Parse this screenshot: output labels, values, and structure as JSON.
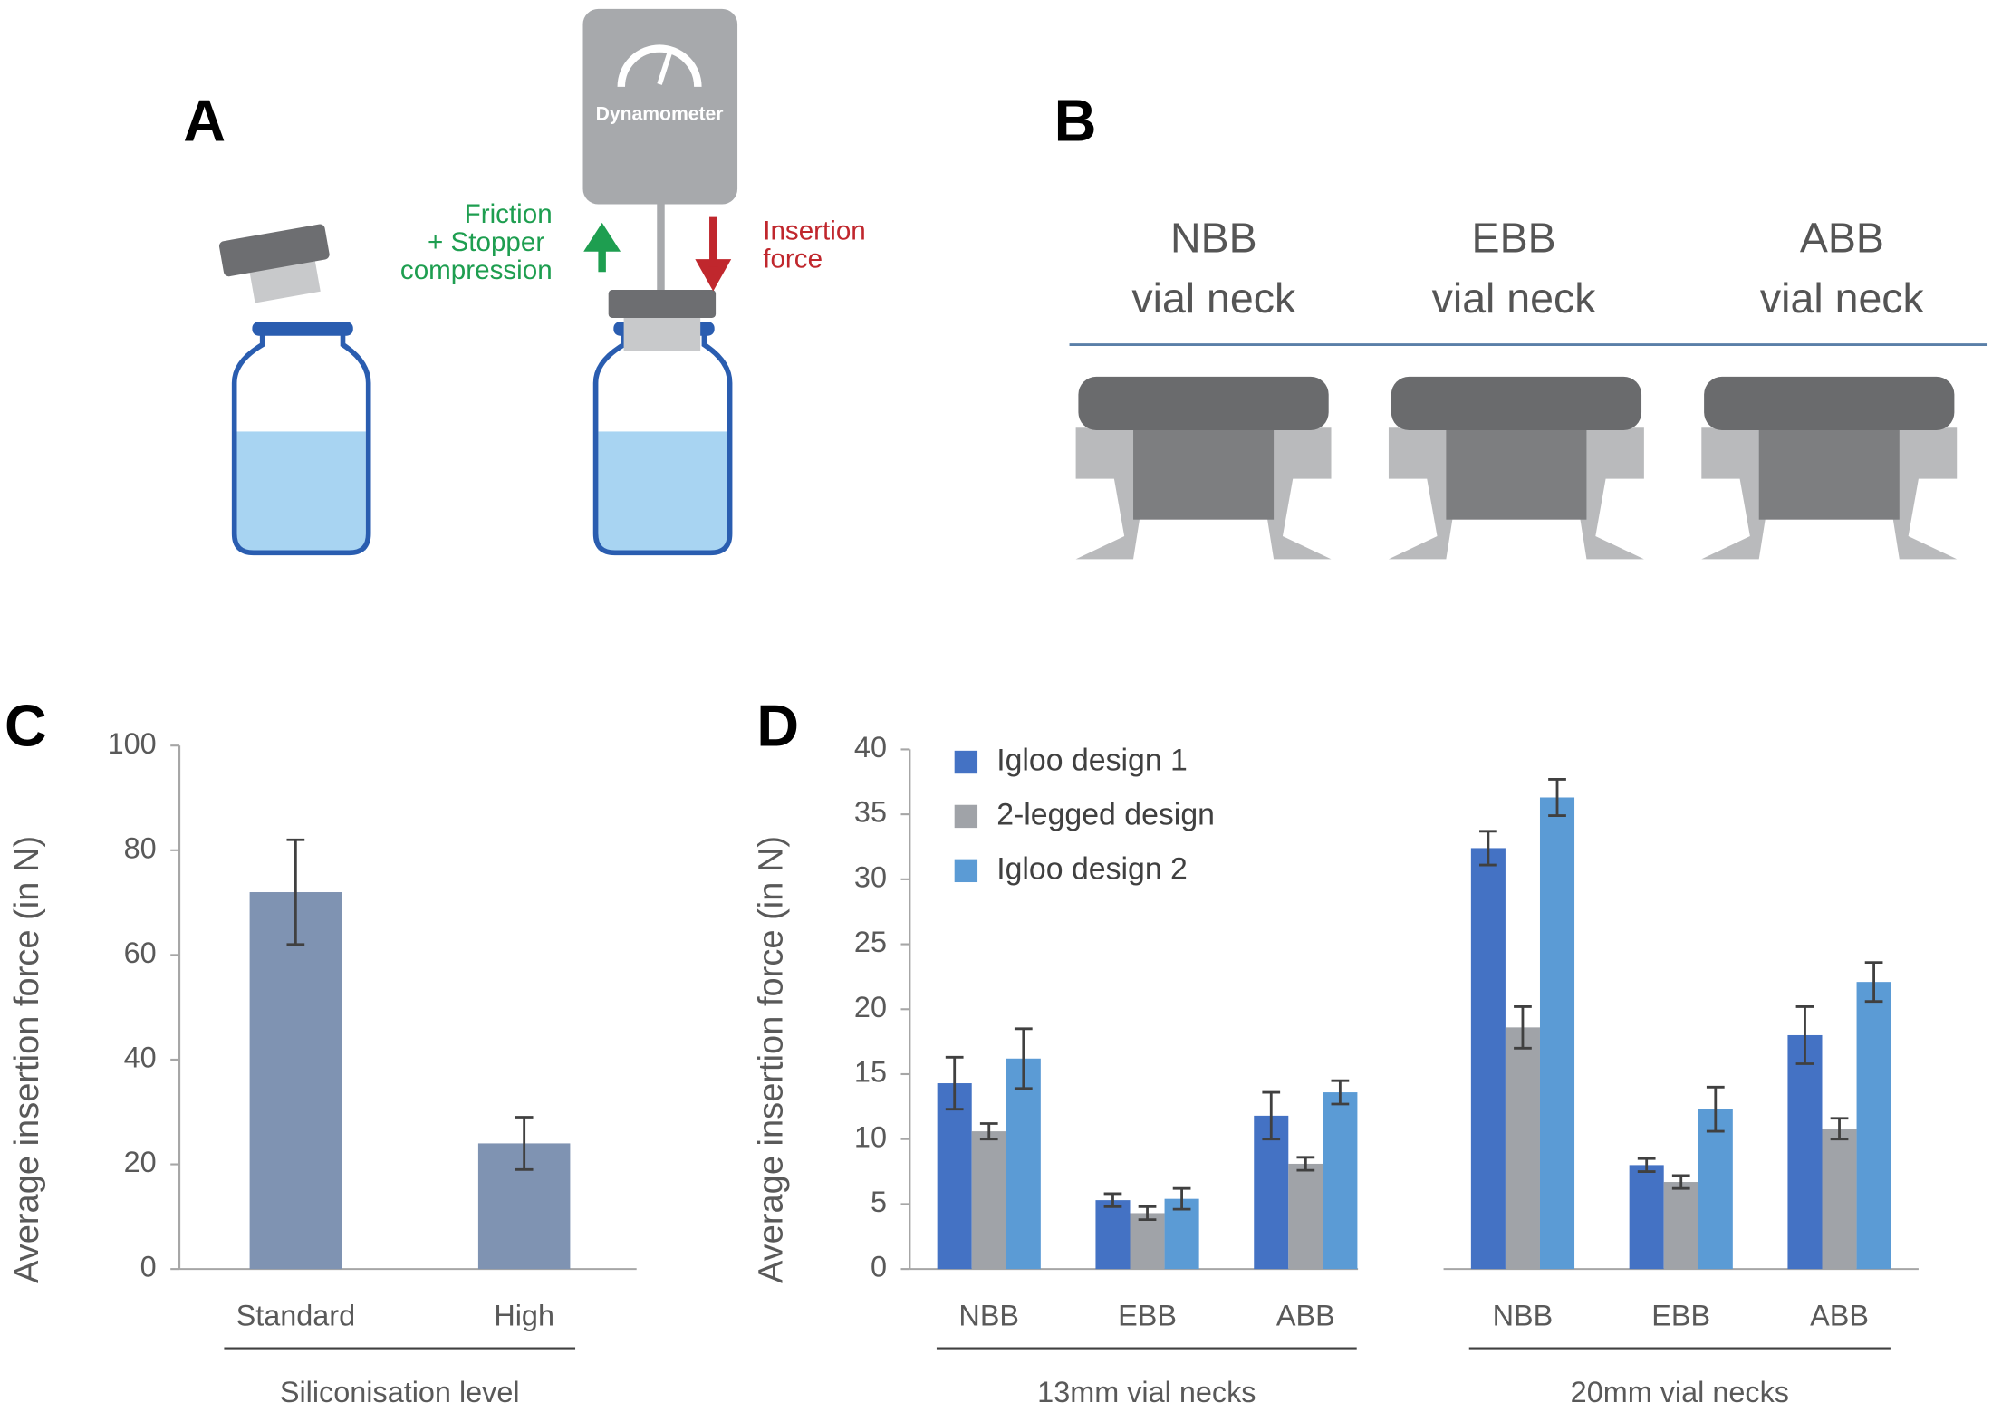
{
  "panel_labels": [
    "A",
    "B",
    "C",
    "D"
  ],
  "diagram_a": {
    "dynamometer": "Dynamometer",
    "friction_label": [
      "Friction",
      "+ Stopper",
      "compression"
    ],
    "insertion_label": [
      "Insertion",
      "force"
    ]
  },
  "panel_b": {
    "necks": [
      [
        "NBB",
        "vial neck"
      ],
      [
        "EBB",
        "vial neck"
      ],
      [
        "ABB",
        "vial neck"
      ]
    ]
  },
  "chart_data": [
    {
      "type": "bar",
      "categories": [
        "Standard",
        "High"
      ],
      "values": [
        72,
        24
      ],
      "errors": [
        10,
        5
      ],
      "color": "#7f93b2",
      "ylim": [
        0,
        100
      ],
      "yticks": [
        0,
        20,
        40,
        60,
        80,
        100
      ],
      "ylabel": "Average insertion force (in N)",
      "xlabel": "Siliconisation level"
    },
    {
      "type": "bar",
      "categories": [
        "NBB",
        "EBB",
        "ABB",
        "NBB",
        "EBB",
        "ABB"
      ],
      "group_labels": [
        "13mm vial necks",
        "20mm vial necks"
      ],
      "series": [
        {
          "name": "Igloo design 1",
          "color": "#4472c4",
          "values": [
            14.3,
            5.3,
            11.8,
            32.4,
            8.0,
            18.0
          ],
          "errors": [
            2.0,
            0.5,
            1.8,
            1.3,
            0.5,
            2.2
          ]
        },
        {
          "name": "2-legged design",
          "color": "#a0a3a8",
          "values": [
            10.6,
            4.3,
            8.1,
            18.6,
            6.7,
            10.8
          ],
          "errors": [
            0.6,
            0.5,
            0.5,
            1.6,
            0.5,
            0.8
          ]
        },
        {
          "name": "Igloo design 2",
          "color": "#5b9bd5",
          "values": [
            16.2,
            5.4,
            13.6,
            36.3,
            12.3,
            22.1
          ],
          "errors": [
            2.3,
            0.8,
            0.9,
            1.4,
            1.7,
            1.5
          ]
        }
      ],
      "ylim": [
        0,
        40
      ],
      "yticks": [
        0,
        5,
        10,
        15,
        20,
        25,
        30,
        35,
        40
      ],
      "ylabel": "Average insertion force (in N)",
      "legend": "upper left"
    }
  ]
}
